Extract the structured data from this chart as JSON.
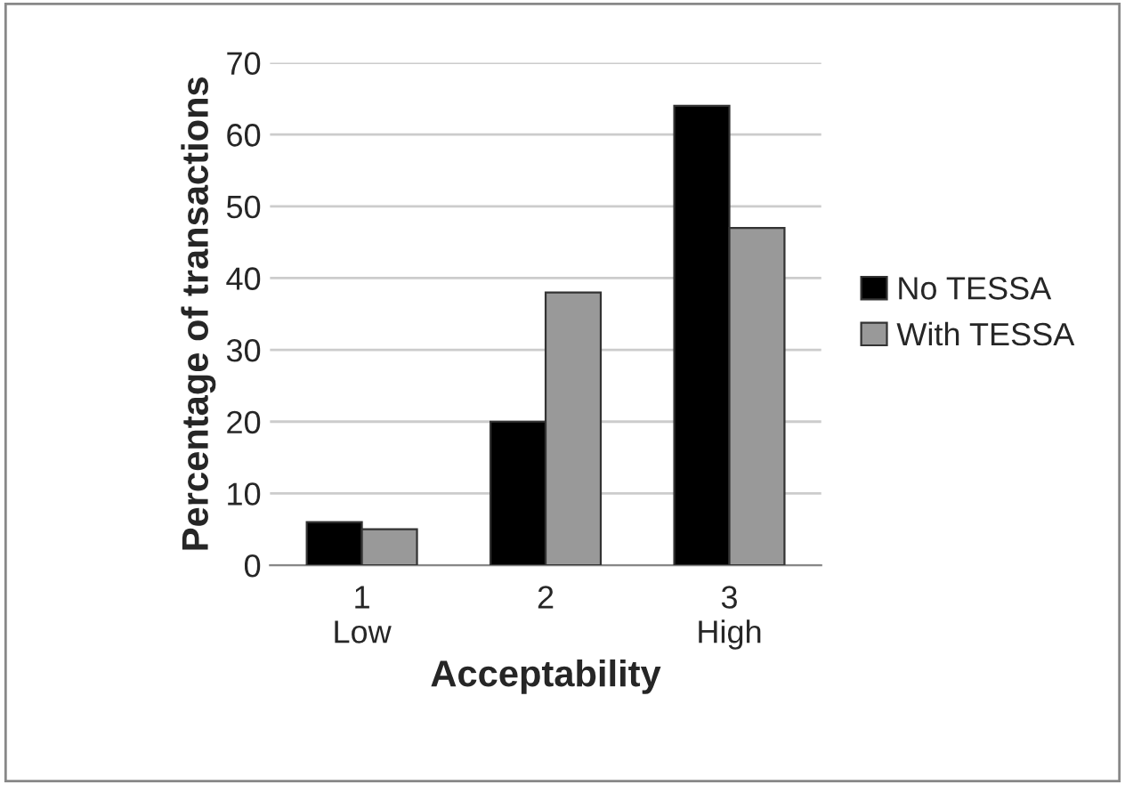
{
  "chart_data": {
    "type": "bar",
    "xlabel": "Acceptability",
    "ylabel": "Percentage of transactions",
    "categories": [
      "1\nLow",
      "2",
      "3\nHigh"
    ],
    "series": [
      {
        "name": "No TESSA",
        "color": "#000000",
        "values": [
          6,
          20,
          64
        ]
      },
      {
        "name": "With TESSA",
        "color": "#999999",
        "values": [
          5,
          38,
          47
        ]
      }
    ],
    "ylim": [
      0,
      70
    ],
    "yticks": [
      0,
      10,
      20,
      30,
      40,
      50,
      60,
      70
    ],
    "grid": "y",
    "legend": "right"
  }
}
